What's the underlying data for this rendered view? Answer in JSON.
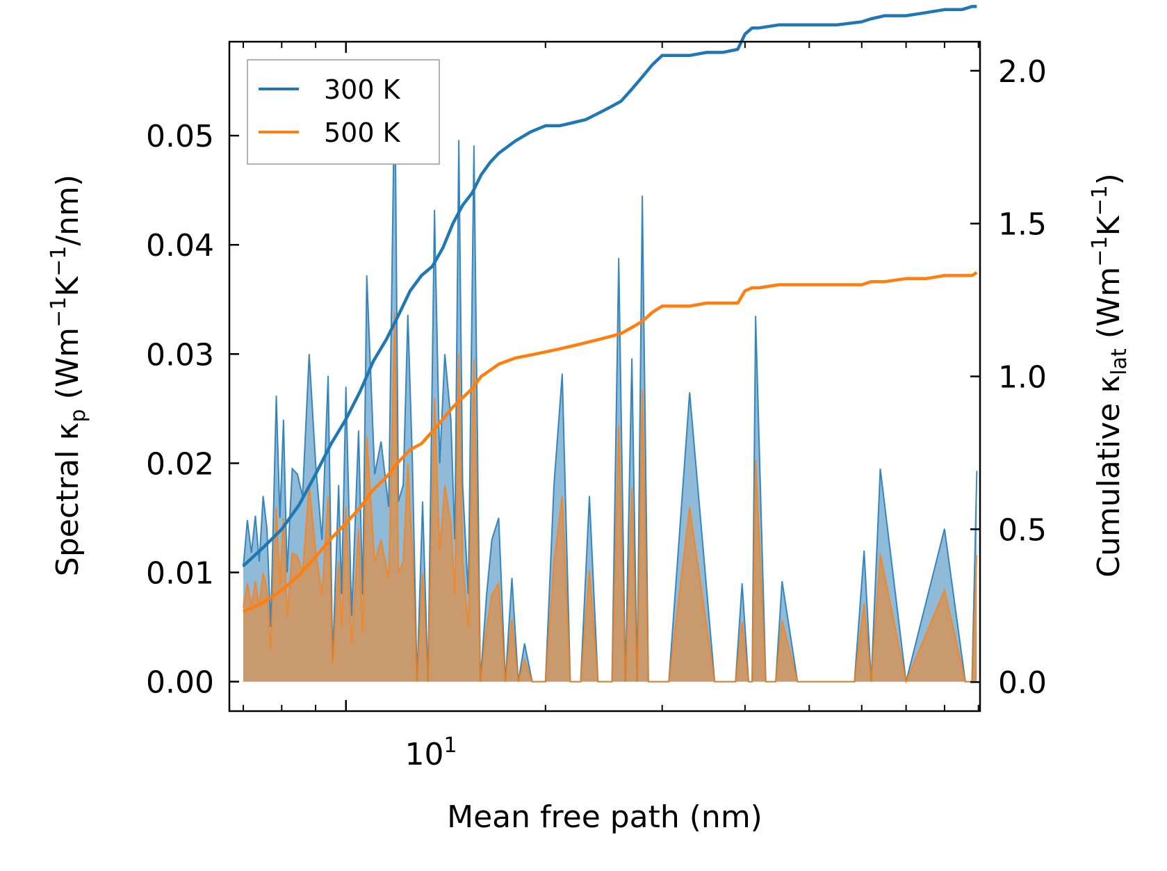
{
  "chart_data": {
    "type": "line",
    "title": "",
    "xlabel": "Mean free path (nm)",
    "xscale": "log",
    "xlim": [
      6.67,
      90.5
    ],
    "x_ticks": [
      {
        "value": 10,
        "base": "10",
        "exp": "1"
      }
    ],
    "left_axis": {
      "label_prefix": "Spectral κ",
      "label_sub": "p",
      "label_unit_open": " (Wm",
      "label_sup1": "−1",
      "label_mid": "K",
      "label_sup2": "−1",
      "label_close": "/nm)",
      "ylim": [
        -0.0027,
        0.0586
      ],
      "ticks": [
        "0.00",
        "0.01",
        "0.02",
        "0.03",
        "0.04",
        "0.05"
      ]
    },
    "right_axis": {
      "label_prefix": "Cumulative κ",
      "label_sub": "lat",
      "label_unit_open": " (Wm",
      "label_sup1": "−1",
      "label_mid": "K",
      "label_sup2": "−1",
      "label_close": ")",
      "ylim": [
        -0.095,
        2.095
      ],
      "ticks": [
        "0.0",
        "0.5",
        "1.0",
        "1.5",
        "2.0"
      ]
    },
    "legend": {
      "position": "top-left",
      "entries": [
        "300 K",
        "500 K"
      ]
    },
    "colors": {
      "s300": "#1f77b4",
      "s500": "#ff7f0e",
      "fill300": "#1f77b4",
      "fill500": "#c99a6e"
    },
    "spectral": {
      "x": [
        7.0,
        7.1,
        7.2,
        7.3,
        7.4,
        7.5,
        7.6,
        7.7,
        7.85,
        7.95,
        8.05,
        8.15,
        8.3,
        8.45,
        8.6,
        8.8,
        9.0,
        9.2,
        9.4,
        9.55,
        9.75,
        9.85,
        10.0,
        10.2,
        10.45,
        10.6,
        10.75,
        11.05,
        11.3,
        11.6,
        11.85,
        12.0,
        12.2,
        12.4,
        12.6,
        12.8,
        13.05,
        13.3,
        13.6,
        13.85,
        14.1,
        14.4,
        14.6,
        14.8,
        15.0,
        15.3,
        15.6,
        15.95,
        16.3,
        16.6,
        17.0,
        17.4,
        17.8,
        18.2,
        18.6,
        19.1,
        19.5,
        20.0,
        20.6,
        21.2,
        21.8,
        22.6,
        23.3,
        24.0,
        24.6,
        25.2,
        25.8,
        26.4,
        27.0,
        27.5,
        28.0,
        28.6,
        29.3,
        30.0,
        30.7,
        33.0,
        36.0,
        37.4,
        38.7,
        39.6,
        40.5,
        41.0,
        41.5,
        43.0,
        44.5,
        45.5,
        48.0,
        55.0,
        57.0,
        58.5,
        60.5,
        62.0,
        64.0,
        70.0,
        80.0,
        86.0,
        88.0,
        89.5
      ],
      "y300": [
        0.0105,
        0.0148,
        0.0118,
        0.0152,
        0.011,
        0.017,
        0.014,
        0.005,
        0.0262,
        0.015,
        0.024,
        0.01,
        0.0195,
        0.019,
        0.017,
        0.03,
        0.02,
        0.013,
        0.028,
        0.002,
        0.018,
        0.008,
        0.027,
        0.006,
        0.023,
        0.008,
        0.0372,
        0.019,
        0.022,
        0.016,
        0.0557,
        0.0165,
        0.018,
        0.0336,
        0.02,
        0.0,
        0.0165,
        0.0,
        0.0432,
        0.02,
        0.03,
        0.024,
        0.013,
        0.0496,
        0.018,
        0.008,
        0.0491,
        0.0,
        0.008,
        0.013,
        0.015,
        0.0,
        0.0095,
        0.0,
        0.0035,
        0.0,
        0.0,
        0.0,
        0.018,
        0.0282,
        0.0,
        0.0,
        0.017,
        0.0,
        0.0,
        0.0,
        0.0388,
        0.0,
        0.0296,
        0.0,
        0.0445,
        0.0,
        0.0,
        0.0,
        0.0,
        0.0265,
        0.0,
        0.0,
        0.0,
        0.009,
        0.0,
        0.0,
        0.0335,
        0.0,
        0.0,
        0.0092,
        0.0,
        0.0,
        0.0,
        0.0,
        0.012,
        0.0,
        0.0195,
        0.0,
        0.014,
        0.0,
        0.0,
        0.0193
      ],
      "y500": [
        0.0068,
        0.009,
        0.007,
        0.0092,
        0.007,
        0.01,
        0.0085,
        0.003,
        0.016,
        0.009,
        0.015,
        0.006,
        0.0118,
        0.0115,
        0.01,
        0.018,
        0.012,
        0.008,
        0.017,
        0.0015,
        0.011,
        0.005,
        0.016,
        0.0035,
        0.014,
        0.0045,
        0.0225,
        0.011,
        0.013,
        0.0095,
        0.0338,
        0.01,
        0.011,
        0.02,
        0.012,
        0.0,
        0.01,
        0.0,
        0.026,
        0.012,
        0.018,
        0.0145,
        0.008,
        0.03,
        0.011,
        0.005,
        0.0295,
        0.0,
        0.005,
        0.008,
        0.009,
        0.0,
        0.0057,
        0.0,
        0.002,
        0.0,
        0.0,
        0.0,
        0.011,
        0.017,
        0.0,
        0.0,
        0.0102,
        0.0,
        0.0,
        0.0,
        0.0235,
        0.0,
        0.0178,
        0.0,
        0.0268,
        0.0,
        0.0,
        0.0,
        0.0,
        0.016,
        0.0,
        0.0,
        0.0,
        0.0055,
        0.0,
        0.0,
        0.0203,
        0.0,
        0.0,
        0.0056,
        0.0,
        0.0,
        0.0,
        0.0,
        0.0072,
        0.0,
        0.0117,
        0.0,
        0.0084,
        0.0,
        0.0,
        0.0116
      ]
    },
    "cumulative": {
      "x": [
        7.0,
        7.5,
        8.0,
        8.5,
        9.0,
        9.5,
        10.0,
        10.5,
        11.0,
        11.5,
        12.0,
        12.5,
        13.0,
        13.5,
        14.0,
        14.5,
        15.0,
        15.5,
        16.0,
        16.5,
        17.0,
        18.0,
        19.0,
        20.0,
        21.0,
        22.0,
        23.0,
        24.0,
        25.0,
        26.0,
        27.0,
        28.0,
        29.0,
        30.0,
        31.0,
        33.0,
        35.0,
        37.0,
        39.0,
        40.0,
        41.0,
        42.0,
        45.0,
        50.0,
        55.0,
        60.0,
        62.0,
        65.0,
        70.0,
        75.0,
        80.0,
        85.0,
        88.0,
        89.5
      ],
      "y300": [
        0.38,
        0.44,
        0.5,
        0.58,
        0.68,
        0.78,
        0.86,
        0.95,
        1.05,
        1.12,
        1.2,
        1.28,
        1.33,
        1.36,
        1.42,
        1.5,
        1.56,
        1.6,
        1.66,
        1.7,
        1.73,
        1.77,
        1.8,
        1.82,
        1.82,
        1.83,
        1.84,
        1.86,
        1.88,
        1.9,
        1.94,
        1.98,
        2.02,
        2.05,
        2.05,
        2.05,
        2.06,
        2.06,
        2.07,
        2.12,
        2.14,
        2.14,
        2.15,
        2.15,
        2.15,
        2.16,
        2.17,
        2.18,
        2.18,
        2.19,
        2.2,
        2.2,
        2.21,
        2.21
      ],
      "y500": [
        0.23,
        0.26,
        0.3,
        0.35,
        0.41,
        0.47,
        0.52,
        0.57,
        0.63,
        0.67,
        0.72,
        0.76,
        0.78,
        0.82,
        0.86,
        0.9,
        0.93,
        0.96,
        1.0,
        1.02,
        1.04,
        1.06,
        1.07,
        1.08,
        1.09,
        1.1,
        1.11,
        1.12,
        1.13,
        1.14,
        1.16,
        1.18,
        1.21,
        1.23,
        1.23,
        1.23,
        1.24,
        1.24,
        1.24,
        1.28,
        1.29,
        1.29,
        1.3,
        1.3,
        1.3,
        1.3,
        1.31,
        1.31,
        1.32,
        1.32,
        1.33,
        1.33,
        1.33,
        1.34
      ]
    }
  }
}
